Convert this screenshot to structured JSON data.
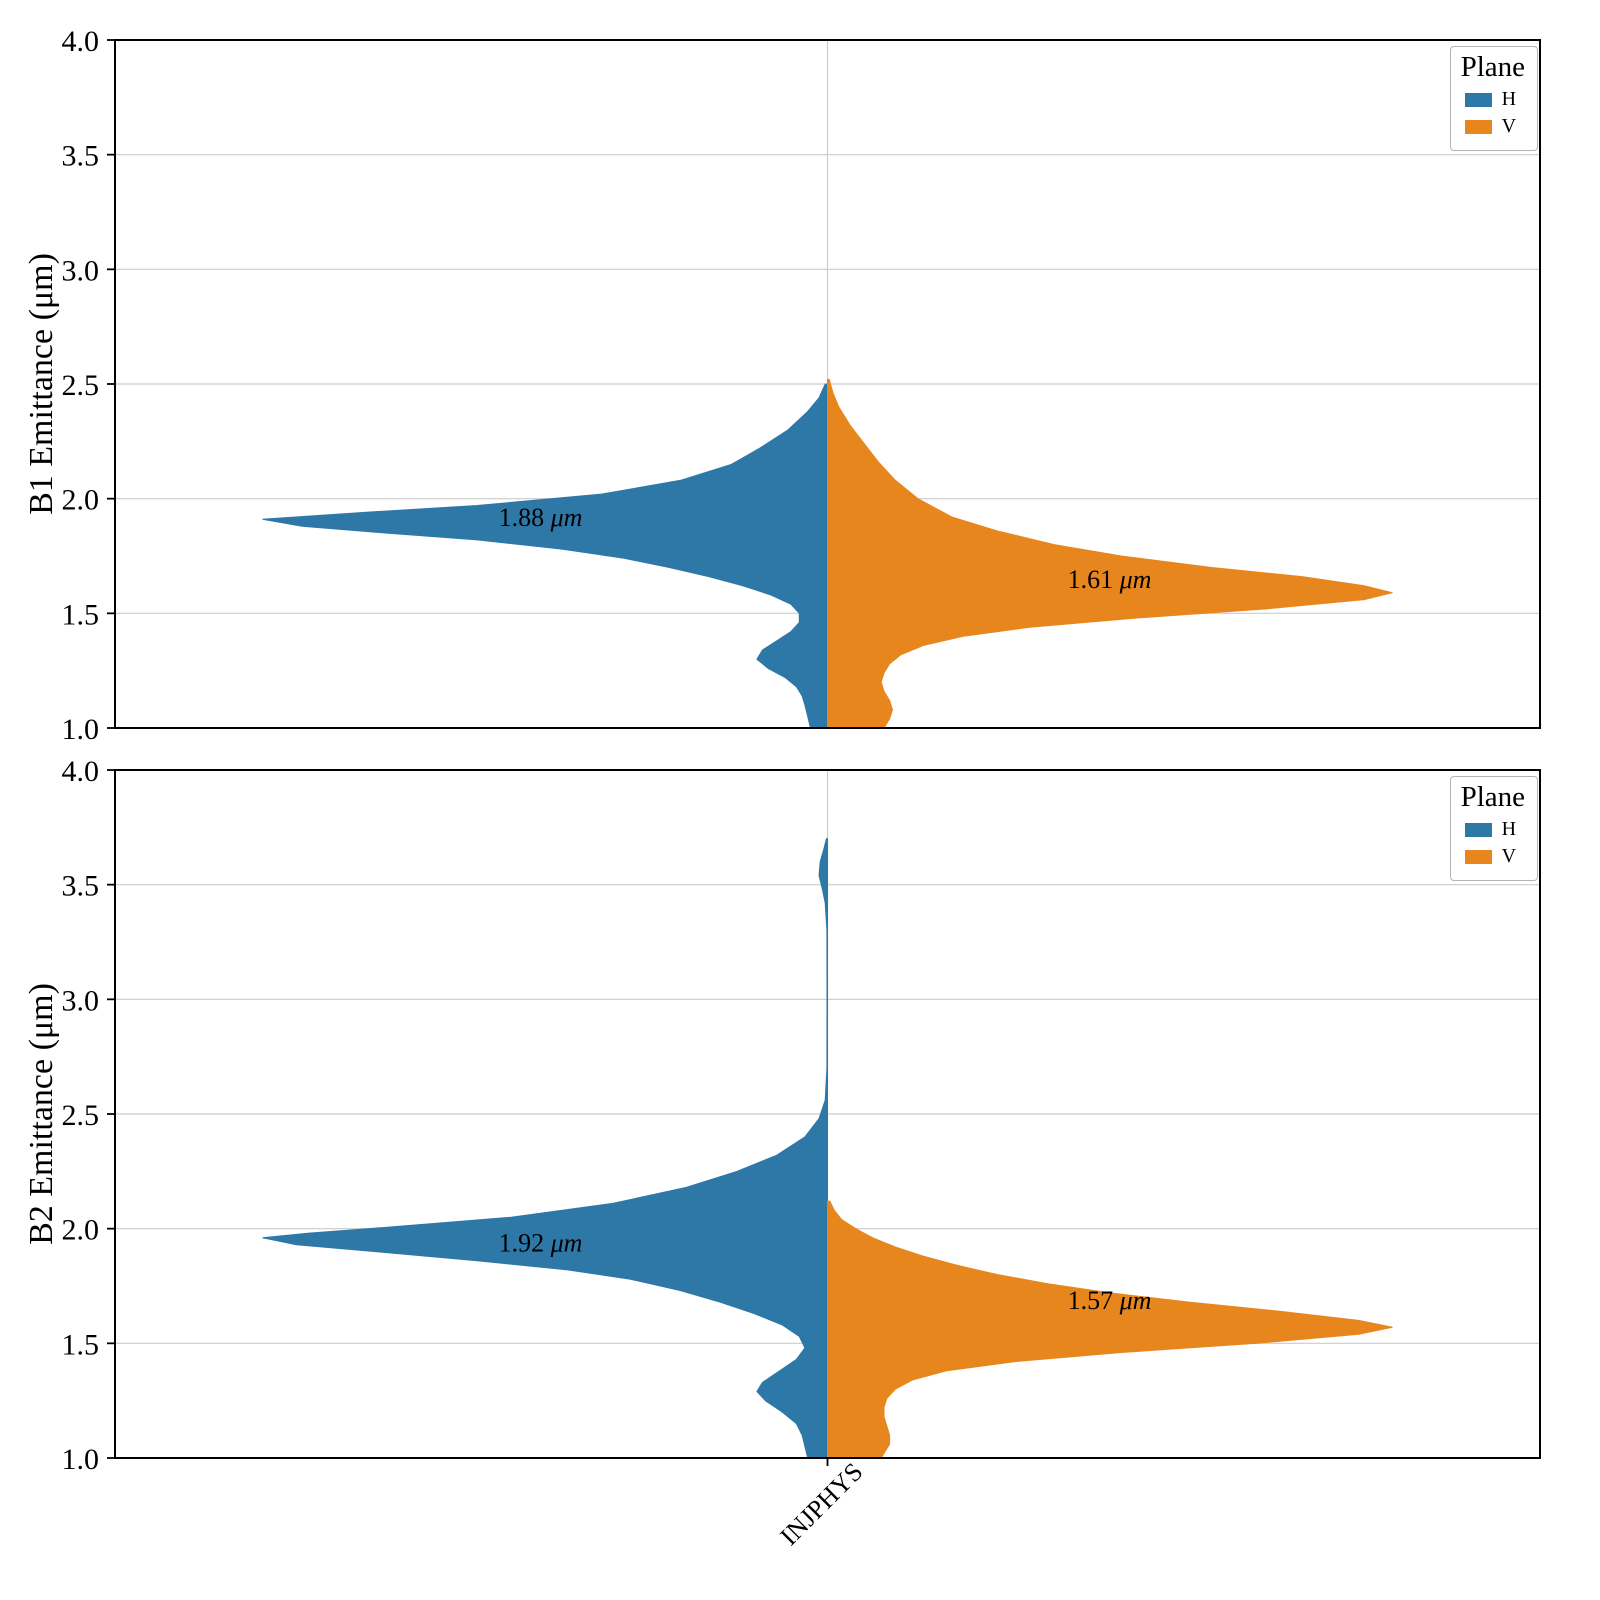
{
  "figure": {
    "background": "#ffffff"
  },
  "chart_data": [
    {
      "type": "violin",
      "title": "",
      "xlabel": "",
      "ylabel": "B1 Emittance (μm)",
      "ylim": [
        1.0,
        4.0
      ],
      "yticks": [
        4.0,
        3.5,
        3.0,
        2.5,
        2.0,
        1.5,
        1.0
      ],
      "categories": [
        "INJPHYS"
      ],
      "grid": true,
      "legend": {
        "title": "Plane",
        "entries": [
          {
            "label": "H",
            "color": "#2e78a8"
          },
          {
            "label": "V",
            "color": "#e8861e"
          }
        ]
      },
      "series": [
        {
          "name": "H",
          "side": "left",
          "color": "#2e78a8",
          "mean_label": "1.88 μm",
          "label_y": 1.92,
          "label_dx": -287,
          "profile": [
            [
              2.5,
              0.004
            ],
            [
              2.44,
              0.015
            ],
            [
              2.38,
              0.035
            ],
            [
              2.3,
              0.07
            ],
            [
              2.22,
              0.12
            ],
            [
              2.15,
              0.17
            ],
            [
              2.08,
              0.26
            ],
            [
              2.02,
              0.4
            ],
            [
              1.97,
              0.62
            ],
            [
              1.94,
              0.82
            ],
            [
              1.91,
              1.0
            ],
            [
              1.88,
              0.93
            ],
            [
              1.85,
              0.78
            ],
            [
              1.82,
              0.62
            ],
            [
              1.78,
              0.47
            ],
            [
              1.74,
              0.36
            ],
            [
              1.7,
              0.28
            ],
            [
              1.66,
              0.21
            ],
            [
              1.62,
              0.15
            ],
            [
              1.58,
              0.1
            ],
            [
              1.54,
              0.065
            ],
            [
              1.5,
              0.05
            ],
            [
              1.46,
              0.05
            ],
            [
              1.42,
              0.065
            ],
            [
              1.38,
              0.09
            ],
            [
              1.34,
              0.115
            ],
            [
              1.3,
              0.125
            ],
            [
              1.26,
              0.105
            ],
            [
              1.22,
              0.075
            ],
            [
              1.18,
              0.055
            ],
            [
              1.14,
              0.045
            ],
            [
              1.1,
              0.04
            ],
            [
              1.05,
              0.035
            ],
            [
              1.0,
              0.03
            ]
          ]
        },
        {
          "name": "V",
          "side": "right",
          "color": "#e8861e",
          "mean_label": "1.61 μm",
          "label_y": 1.65,
          "label_dx": 282,
          "profile": [
            [
              2.52,
              0.003
            ],
            [
              2.46,
              0.01
            ],
            [
              2.4,
              0.02
            ],
            [
              2.32,
              0.04
            ],
            [
              2.24,
              0.065
            ],
            [
              2.16,
              0.09
            ],
            [
              2.08,
              0.12
            ],
            [
              2.0,
              0.16
            ],
            [
              1.92,
              0.22
            ],
            [
              1.86,
              0.3
            ],
            [
              1.8,
              0.4
            ],
            [
              1.75,
              0.52
            ],
            [
              1.7,
              0.68
            ],
            [
              1.66,
              0.84
            ],
            [
              1.62,
              0.95
            ],
            [
              1.59,
              1.0
            ],
            [
              1.56,
              0.95
            ],
            [
              1.52,
              0.78
            ],
            [
              1.48,
              0.55
            ],
            [
              1.44,
              0.36
            ],
            [
              1.4,
              0.24
            ],
            [
              1.36,
              0.17
            ],
            [
              1.32,
              0.13
            ],
            [
              1.28,
              0.11
            ],
            [
              1.24,
              0.1
            ],
            [
              1.2,
              0.095
            ],
            [
              1.16,
              0.1
            ],
            [
              1.12,
              0.11
            ],
            [
              1.08,
              0.115
            ],
            [
              1.04,
              0.11
            ],
            [
              1.0,
              0.1
            ]
          ]
        }
      ]
    },
    {
      "type": "violin",
      "title": "",
      "xlabel": "",
      "ylabel": "B2 Emittance (μm)",
      "ylim": [
        1.0,
        4.0
      ],
      "yticks": [
        4.0,
        3.5,
        3.0,
        2.5,
        2.0,
        1.5,
        1.0
      ],
      "categories": [
        "INJPHYS"
      ],
      "grid": true,
      "legend": {
        "title": "Plane",
        "entries": [
          {
            "label": "H",
            "color": "#2e78a8"
          },
          {
            "label": "V",
            "color": "#e8861e"
          }
        ]
      },
      "series": [
        {
          "name": "H",
          "side": "left",
          "color": "#2e78a8",
          "mean_label": "1.92 μm",
          "label_y": 1.94,
          "label_dx": -287,
          "profile": [
            [
              3.7,
              0.002
            ],
            [
              3.66,
              0.006
            ],
            [
              3.6,
              0.013
            ],
            [
              3.54,
              0.015
            ],
            [
              3.48,
              0.009
            ],
            [
              3.42,
              0.004
            ],
            [
              3.3,
              0.001
            ],
            [
              3.0,
              0.0008
            ],
            [
              2.7,
              0.001
            ],
            [
              2.56,
              0.004
            ],
            [
              2.48,
              0.015
            ],
            [
              2.4,
              0.04
            ],
            [
              2.32,
              0.09
            ],
            [
              2.25,
              0.16
            ],
            [
              2.18,
              0.25
            ],
            [
              2.11,
              0.38
            ],
            [
              2.05,
              0.56
            ],
            [
              2.01,
              0.76
            ],
            [
              1.98,
              0.92
            ],
            [
              1.96,
              1.0
            ],
            [
              1.93,
              0.94
            ],
            [
              1.9,
              0.8
            ],
            [
              1.86,
              0.62
            ],
            [
              1.82,
              0.46
            ],
            [
              1.78,
              0.35
            ],
            [
              1.73,
              0.26
            ],
            [
              1.68,
              0.19
            ],
            [
              1.63,
              0.13
            ],
            [
              1.58,
              0.08
            ],
            [
              1.53,
              0.05
            ],
            [
              1.48,
              0.04
            ],
            [
              1.43,
              0.055
            ],
            [
              1.38,
              0.085
            ],
            [
              1.33,
              0.115
            ],
            [
              1.29,
              0.125
            ],
            [
              1.25,
              0.11
            ],
            [
              1.2,
              0.08
            ],
            [
              1.15,
              0.055
            ],
            [
              1.1,
              0.045
            ],
            [
              1.05,
              0.04
            ],
            [
              1.0,
              0.035
            ]
          ]
        },
        {
          "name": "V",
          "side": "right",
          "color": "#e8861e",
          "mean_label": "1.57 μm",
          "label_y": 1.69,
          "label_dx": 282,
          "profile": [
            [
              2.12,
              0.004
            ],
            [
              2.08,
              0.012
            ],
            [
              2.04,
              0.025
            ],
            [
              2.0,
              0.05
            ],
            [
              1.96,
              0.08
            ],
            [
              1.92,
              0.12
            ],
            [
              1.88,
              0.17
            ],
            [
              1.84,
              0.23
            ],
            [
              1.8,
              0.3
            ],
            [
              1.76,
              0.39
            ],
            [
              1.72,
              0.5
            ],
            [
              1.68,
              0.64
            ],
            [
              1.64,
              0.8
            ],
            [
              1.6,
              0.94
            ],
            [
              1.57,
              1.0
            ],
            [
              1.54,
              0.94
            ],
            [
              1.5,
              0.76
            ],
            [
              1.46,
              0.52
            ],
            [
              1.42,
              0.33
            ],
            [
              1.38,
              0.21
            ],
            [
              1.34,
              0.15
            ],
            [
              1.3,
              0.12
            ],
            [
              1.26,
              0.105
            ],
            [
              1.22,
              0.1
            ],
            [
              1.18,
              0.1
            ],
            [
              1.14,
              0.105
            ],
            [
              1.1,
              0.11
            ],
            [
              1.06,
              0.11
            ],
            [
              1.02,
              0.1
            ],
            [
              1.0,
              0.095
            ]
          ]
        }
      ]
    }
  ]
}
